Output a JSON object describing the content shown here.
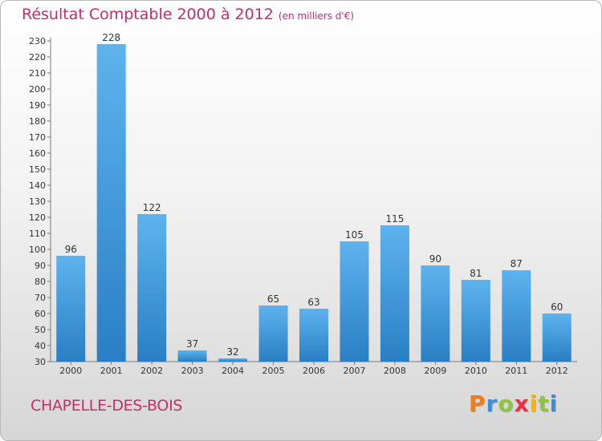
{
  "title": "Résultat Comptable 2000 à 2012",
  "subtitle": "(en milliers d'€)",
  "commune": "CHAPELLE-DES-BOIS",
  "brand": {
    "letters": [
      "P",
      "r",
      "o",
      "x",
      "i",
      "t",
      "i"
    ],
    "colors": [
      "#f07d1a",
      "#3a8fd6",
      "#8cc63f",
      "#e8304a",
      "#f0b21a",
      "#8cc63f",
      "#3a8fd6"
    ]
  },
  "colors": {
    "bar_light": "#5eb3ee",
    "bar_dark": "#2a7fc4",
    "title": "#c0306a"
  },
  "chart_data": {
    "type": "bar",
    "categories": [
      "2000",
      "2001",
      "2002",
      "2003",
      "2004",
      "2005",
      "2006",
      "2007",
      "2008",
      "2009",
      "2010",
      "2011",
      "2012"
    ],
    "values": [
      96,
      228,
      122,
      37,
      32,
      65,
      63,
      105,
      115,
      90,
      81,
      87,
      60
    ],
    "ylim": [
      30,
      230
    ],
    "ytick_step": 10,
    "grid": false
  }
}
